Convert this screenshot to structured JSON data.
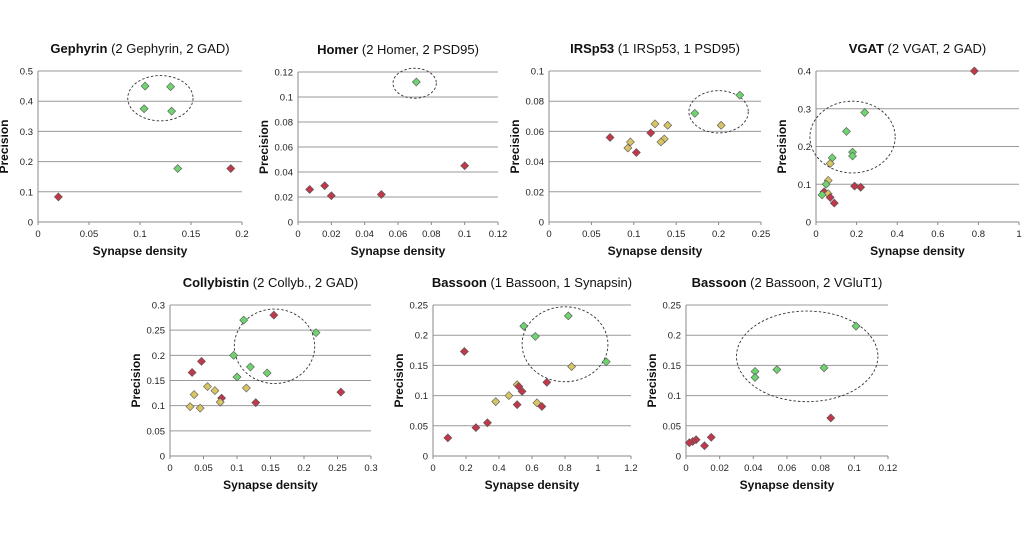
{
  "colors": {
    "green": "#6fd36f",
    "red": "#c0394b",
    "yellow": "#d6c466",
    "edge": "#555555",
    "grid": "#9a9a9a"
  },
  "chart_data": [
    {
      "type": "scatter",
      "title_bold": "Gephyrin",
      "title_rest": " (2 Gephyrin, 2 GAD)",
      "xlabel": "Synapse density",
      "ylabel": "Precision",
      "xlim": [
        0,
        0.2
      ],
      "ylim": [
        0,
        0.5
      ],
      "xticks": [
        "0",
        "0.05",
        "0.1",
        "0.15",
        "0.2"
      ],
      "yticks": [
        "0",
        "0.1",
        "0.2",
        "0.3",
        "0.4",
        "0.5"
      ],
      "grid": true,
      "points": [
        {
          "x": 0.105,
          "y": 0.45,
          "c": "green"
        },
        {
          "x": 0.13,
          "y": 0.448,
          "c": "green"
        },
        {
          "x": 0.104,
          "y": 0.375,
          "c": "green"
        },
        {
          "x": 0.131,
          "y": 0.367,
          "c": "green"
        },
        {
          "x": 0.137,
          "y": 0.177,
          "c": "green"
        },
        {
          "x": 0.189,
          "y": 0.177,
          "c": "red"
        },
        {
          "x": 0.02,
          "y": 0.083,
          "c": "red"
        }
      ],
      "ellipse": {
        "cx": 0.12,
        "cy": 0.41,
        "rx": 0.032,
        "ry": 0.075
      }
    },
    {
      "type": "scatter",
      "title_bold": "Homer",
      "title_rest": " (2 Homer, 2 PSD95)",
      "xlabel": "Synapse density",
      "ylabel": "Precision",
      "xlim": [
        0,
        0.12
      ],
      "ylim": [
        0,
        0.12
      ],
      "xticks": [
        "0",
        "0.02",
        "0.04",
        "0.06",
        "0.08",
        "0.1",
        "0.12"
      ],
      "yticks": [
        "0",
        "0.02",
        "0.04",
        "0.06",
        "0.08",
        "0.1",
        "0.12"
      ],
      "grid": true,
      "points": [
        {
          "x": 0.071,
          "y": 0.112,
          "c": "green"
        },
        {
          "x": 0.1,
          "y": 0.045,
          "c": "red"
        },
        {
          "x": 0.007,
          "y": 0.026,
          "c": "red"
        },
        {
          "x": 0.016,
          "y": 0.029,
          "c": "red"
        },
        {
          "x": 0.02,
          "y": 0.021,
          "c": "red"
        },
        {
          "x": 0.05,
          "y": 0.022,
          "c": "red"
        }
      ],
      "ellipse": {
        "cx": 0.07,
        "cy": 0.111,
        "rx": 0.013,
        "ry": 0.012
      }
    },
    {
      "type": "scatter",
      "title_bold": "IRSp53",
      "title_rest": " (1 IRSp53, 1 PSD95)",
      "xlabel": "Synapse density",
      "ylabel": "Precision",
      "xlim": [
        0,
        0.25
      ],
      "ylim": [
        0,
        0.1
      ],
      "xticks": [
        "0",
        "0.05",
        "0.1",
        "0.15",
        "0.2",
        "0.25"
      ],
      "yticks": [
        "0",
        "0.02",
        "0.04",
        "0.06",
        "0.08",
        "0.1"
      ],
      "grid": true,
      "points": [
        {
          "x": 0.225,
          "y": 0.084,
          "c": "green"
        },
        {
          "x": 0.172,
          "y": 0.072,
          "c": "green"
        },
        {
          "x": 0.203,
          "y": 0.064,
          "c": "yellow"
        },
        {
          "x": 0.125,
          "y": 0.065,
          "c": "yellow"
        },
        {
          "x": 0.14,
          "y": 0.064,
          "c": "yellow"
        },
        {
          "x": 0.12,
          "y": 0.059,
          "c": "red"
        },
        {
          "x": 0.072,
          "y": 0.056,
          "c": "red"
        },
        {
          "x": 0.096,
          "y": 0.053,
          "c": "yellow"
        },
        {
          "x": 0.136,
          "y": 0.055,
          "c": "yellow"
        },
        {
          "x": 0.132,
          "y": 0.053,
          "c": "yellow"
        },
        {
          "x": 0.093,
          "y": 0.049,
          "c": "yellow"
        },
        {
          "x": 0.103,
          "y": 0.046,
          "c": "red"
        }
      ],
      "ellipse": {
        "cx": 0.2,
        "cy": 0.073,
        "rx": 0.035,
        "ry": 0.014
      }
    },
    {
      "type": "scatter",
      "title_bold": "VGAT",
      "title_rest": " (2 VGAT, 2 GAD)",
      "xlabel": "Synapse density",
      "ylabel": "Precision",
      "xlim": [
        0,
        1
      ],
      "ylim": [
        0,
        0.4
      ],
      "xticks": [
        "0",
        "0.2",
        "0.4",
        "0.6",
        "0.8",
        "1"
      ],
      "yticks": [
        "0",
        "0.1",
        "0.2",
        "0.3",
        "0.4"
      ],
      "grid": true,
      "points": [
        {
          "x": 0.78,
          "y": 0.4,
          "c": "red"
        },
        {
          "x": 0.24,
          "y": 0.29,
          "c": "green"
        },
        {
          "x": 0.15,
          "y": 0.24,
          "c": "green"
        },
        {
          "x": 0.18,
          "y": 0.185,
          "c": "green"
        },
        {
          "x": 0.18,
          "y": 0.175,
          "c": "green"
        },
        {
          "x": 0.08,
          "y": 0.17,
          "c": "green"
        },
        {
          "x": 0.07,
          "y": 0.155,
          "c": "yellow"
        },
        {
          "x": 0.06,
          "y": 0.11,
          "c": "yellow"
        },
        {
          "x": 0.05,
          "y": 0.1,
          "c": "green"
        },
        {
          "x": 0.19,
          "y": 0.095,
          "c": "red"
        },
        {
          "x": 0.22,
          "y": 0.092,
          "c": "red"
        },
        {
          "x": 0.04,
          "y": 0.08,
          "c": "red"
        },
        {
          "x": 0.06,
          "y": 0.075,
          "c": "yellow"
        },
        {
          "x": 0.03,
          "y": 0.072,
          "c": "green"
        },
        {
          "x": 0.07,
          "y": 0.065,
          "c": "red"
        },
        {
          "x": 0.09,
          "y": 0.05,
          "c": "red"
        }
      ],
      "ellipse": {
        "cx": 0.18,
        "cy": 0.225,
        "rx": 0.21,
        "ry": 0.095
      }
    },
    {
      "type": "scatter",
      "title_bold": "Collybistin",
      "title_rest": " (2 Collyb., 2 GAD)",
      "xlabel": "Synapse density",
      "ylabel": "Precision",
      "xlim": [
        0,
        0.3
      ],
      "ylim": [
        0,
        0.3
      ],
      "xticks": [
        "0",
        "0.05",
        "0.1",
        "0.15",
        "0.2",
        "0.25",
        "0.3"
      ],
      "yticks": [
        "0",
        "0.05",
        "0.1",
        "0.15",
        "0.2",
        "0.25",
        "0.3"
      ],
      "grid": true,
      "points": [
        {
          "x": 0.155,
          "y": 0.28,
          "c": "red"
        },
        {
          "x": 0.11,
          "y": 0.27,
          "c": "green"
        },
        {
          "x": 0.218,
          "y": 0.245,
          "c": "green"
        },
        {
          "x": 0.095,
          "y": 0.2,
          "c": "green"
        },
        {
          "x": 0.047,
          "y": 0.188,
          "c": "red"
        },
        {
          "x": 0.12,
          "y": 0.177,
          "c": "green"
        },
        {
          "x": 0.033,
          "y": 0.166,
          "c": "red"
        },
        {
          "x": 0.145,
          "y": 0.165,
          "c": "green"
        },
        {
          "x": 0.1,
          "y": 0.157,
          "c": "green"
        },
        {
          "x": 0.056,
          "y": 0.138,
          "c": "yellow"
        },
        {
          "x": 0.114,
          "y": 0.135,
          "c": "yellow"
        },
        {
          "x": 0.067,
          "y": 0.13,
          "c": "yellow"
        },
        {
          "x": 0.255,
          "y": 0.127,
          "c": "red"
        },
        {
          "x": 0.036,
          "y": 0.122,
          "c": "yellow"
        },
        {
          "x": 0.077,
          "y": 0.115,
          "c": "red"
        },
        {
          "x": 0.075,
          "y": 0.107,
          "c": "yellow"
        },
        {
          "x": 0.128,
          "y": 0.106,
          "c": "red"
        },
        {
          "x": 0.03,
          "y": 0.098,
          "c": "yellow"
        },
        {
          "x": 0.045,
          "y": 0.095,
          "c": "yellow"
        }
      ],
      "ellipse": {
        "cx": 0.156,
        "cy": 0.218,
        "rx": 0.06,
        "ry": 0.074
      }
    },
    {
      "type": "scatter",
      "title_bold": "Bassoon",
      "title_rest": " (1 Bassoon, 1 Synapsin)",
      "xlabel": "Synapse density",
      "ylabel": "Precision",
      "xlim": [
        0,
        1.2
      ],
      "ylim": [
        0,
        0.25
      ],
      "xticks": [
        "0",
        "0.2",
        "0.4",
        "0.6",
        "0.8",
        "1",
        "1.2"
      ],
      "yticks": [
        "0",
        "0.05",
        "0.1",
        "0.15",
        "0.2",
        "0.25"
      ],
      "grid": true,
      "points": [
        {
          "x": 0.82,
          "y": 0.232,
          "c": "green"
        },
        {
          "x": 0.55,
          "y": 0.215,
          "c": "green"
        },
        {
          "x": 0.62,
          "y": 0.198,
          "c": "green"
        },
        {
          "x": 0.19,
          "y": 0.173,
          "c": "red"
        },
        {
          "x": 1.05,
          "y": 0.156,
          "c": "green"
        },
        {
          "x": 0.84,
          "y": 0.148,
          "c": "yellow"
        },
        {
          "x": 0.69,
          "y": 0.122,
          "c": "red"
        },
        {
          "x": 0.51,
          "y": 0.118,
          "c": "yellow"
        },
        {
          "x": 0.52,
          "y": 0.115,
          "c": "red"
        },
        {
          "x": 0.54,
          "y": 0.107,
          "c": "red"
        },
        {
          "x": 0.46,
          "y": 0.1,
          "c": "yellow"
        },
        {
          "x": 0.38,
          "y": 0.09,
          "c": "yellow"
        },
        {
          "x": 0.63,
          "y": 0.088,
          "c": "yellow"
        },
        {
          "x": 0.51,
          "y": 0.085,
          "c": "red"
        },
        {
          "x": 0.66,
          "y": 0.082,
          "c": "red"
        },
        {
          "x": 0.33,
          "y": 0.055,
          "c": "red"
        },
        {
          "x": 0.26,
          "y": 0.047,
          "c": "red"
        },
        {
          "x": 0.09,
          "y": 0.03,
          "c": "red"
        }
      ],
      "ellipse": {
        "cx": 0.8,
        "cy": 0.185,
        "rx": 0.26,
        "ry": 0.062
      }
    },
    {
      "type": "scatter",
      "title_bold": "Bassoon",
      "title_rest": " (2 Bassoon, 2 VGluT1)",
      "xlabel": "Synapse density",
      "ylabel": "Precision",
      "xlim": [
        0,
        0.12
      ],
      "ylim": [
        0,
        0.25
      ],
      "xticks": [
        "0",
        "0.02",
        "0.04",
        "0.06",
        "0.08",
        "0.1",
        "0.12"
      ],
      "yticks": [
        "0",
        "0.05",
        "0.1",
        "0.15",
        "0.2",
        "0.25"
      ],
      "grid": true,
      "points": [
        {
          "x": 0.101,
          "y": 0.215,
          "c": "green"
        },
        {
          "x": 0.082,
          "y": 0.146,
          "c": "green"
        },
        {
          "x": 0.054,
          "y": 0.143,
          "c": "green"
        },
        {
          "x": 0.041,
          "y": 0.14,
          "c": "green"
        },
        {
          "x": 0.041,
          "y": 0.13,
          "c": "green"
        },
        {
          "x": 0.086,
          "y": 0.063,
          "c": "red"
        },
        {
          "x": 0.015,
          "y": 0.031,
          "c": "red"
        },
        {
          "x": 0.006,
          "y": 0.027,
          "c": "red"
        },
        {
          "x": 0.004,
          "y": 0.024,
          "c": "red"
        },
        {
          "x": 0.002,
          "y": 0.022,
          "c": "red"
        },
        {
          "x": 0.011,
          "y": 0.017,
          "c": "red"
        }
      ],
      "ellipse": {
        "cx": 0.072,
        "cy": 0.165,
        "rx": 0.042,
        "ry": 0.075
      }
    }
  ]
}
